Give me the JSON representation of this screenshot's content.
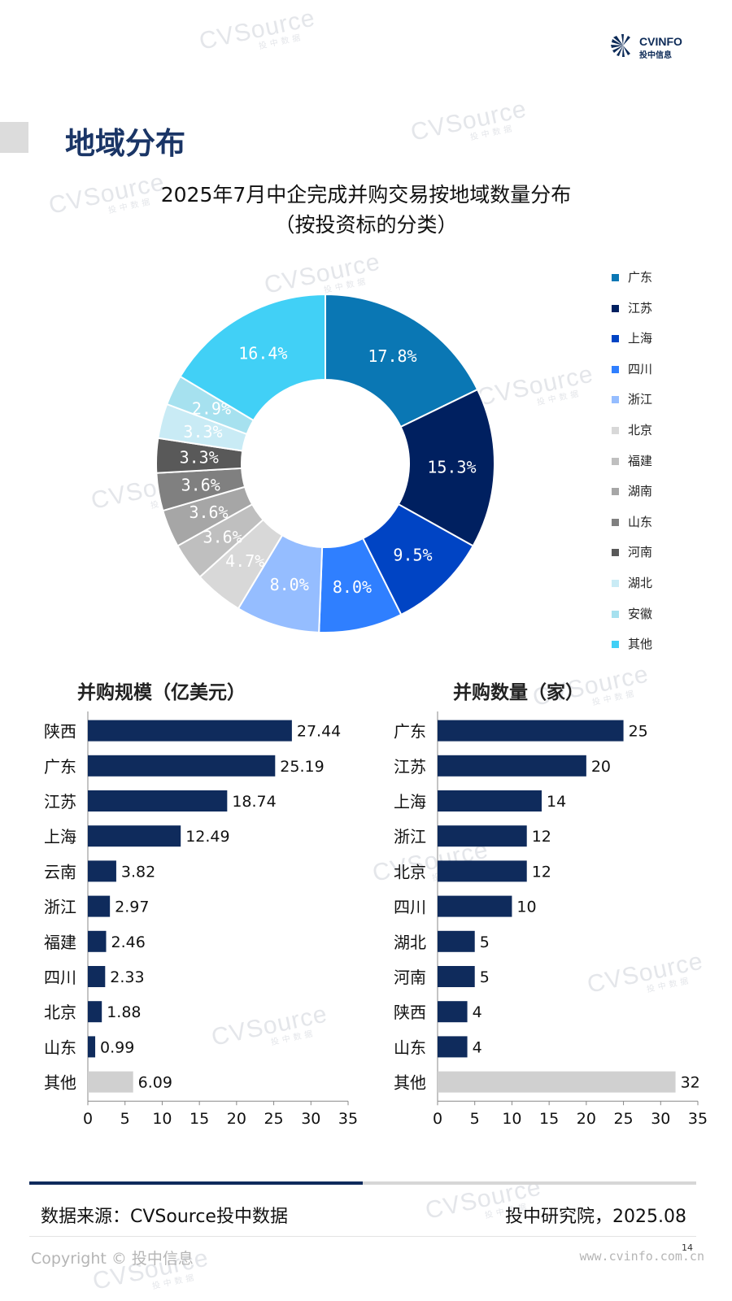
{
  "watermark": {
    "brand": "CVSource",
    "sub": "投中数据"
  },
  "logo": {
    "en": "CVINFO",
    "cn": "投中信息"
  },
  "section_title": "地域分布",
  "colors": {
    "navy": "#0f2b5c",
    "other_bar": "#d0d0d0",
    "axis": "#888888"
  },
  "chart_data": [
    {
      "type": "pie",
      "title": "2025年7月中企完成并购交易按地域数量分布",
      "subtitle": "（按投资标的分类）",
      "legend_position": "right",
      "labels": [
        "广东",
        "江苏",
        "上海",
        "四川",
        "浙江",
        "北京",
        "福建",
        "湖南",
        "山东",
        "河南",
        "湖北",
        "安徽",
        "其他"
      ],
      "values": [
        17.8,
        15.3,
        9.5,
        8.0,
        8.0,
        4.7,
        3.6,
        3.6,
        3.6,
        3.3,
        3.3,
        2.9,
        16.4
      ],
      "display_labels": [
        "17.8%",
        "15.3%",
        "9.5%",
        "8.0%",
        "8.0%",
        "4.7%",
        "3.6%",
        "3.6%",
        "3.6%",
        "3.3%",
        "3.3%",
        "2.9%",
        "16.4%"
      ],
      "colors": [
        "#0a77b4",
        "#002060",
        "#0044c4",
        "#2f7fff",
        "#95bdff",
        "#d8d8d8",
        "#bfbfbf",
        "#a6a6a6",
        "#808080",
        "#595959",
        "#c9ebf5",
        "#a6e1ef",
        "#41d0f6"
      ]
    },
    {
      "type": "bar",
      "orientation": "horizontal",
      "title": "并购规模（亿美元）",
      "categories": [
        "陕西",
        "广东",
        "江苏",
        "上海",
        "云南",
        "浙江",
        "福建",
        "四川",
        "北京",
        "山东",
        "其他"
      ],
      "values": [
        27.44,
        25.19,
        18.74,
        12.49,
        3.82,
        2.97,
        2.46,
        2.33,
        1.88,
        0.99,
        6.09
      ],
      "value_labels": [
        "27.44",
        "25.19",
        "18.74",
        "12.49",
        "3.82",
        "2.97",
        "2.46",
        "2.33",
        "1.88",
        "0.99",
        "6.09"
      ],
      "xlim": [
        0,
        35
      ],
      "xticks": [
        "0",
        "5",
        "10",
        "15",
        "20",
        "25",
        "30",
        "35"
      ]
    },
    {
      "type": "bar",
      "orientation": "horizontal",
      "title": "并购数量（家）",
      "categories": [
        "广东",
        "江苏",
        "上海",
        "浙江",
        "北京",
        "四川",
        "湖北",
        "河南",
        "陕西",
        "山东",
        "其他"
      ],
      "values": [
        25,
        20,
        14,
        12,
        12,
        10,
        5,
        5,
        4,
        4,
        32
      ],
      "value_labels": [
        "25",
        "20",
        "14",
        "12",
        "12",
        "10",
        "5",
        "5",
        "4",
        "4",
        "32"
      ],
      "xlim": [
        0,
        35
      ],
      "xticks": [
        "0",
        "5",
        "10",
        "15",
        "20",
        "25",
        "30",
        "35"
      ]
    }
  ],
  "footer": {
    "source": "数据来源：CVSource投中数据",
    "org": "投中研究院，2025.08",
    "page": "14",
    "copyright": "Copyright © 投中信息",
    "website": "www.cvinfo.com.cn"
  }
}
